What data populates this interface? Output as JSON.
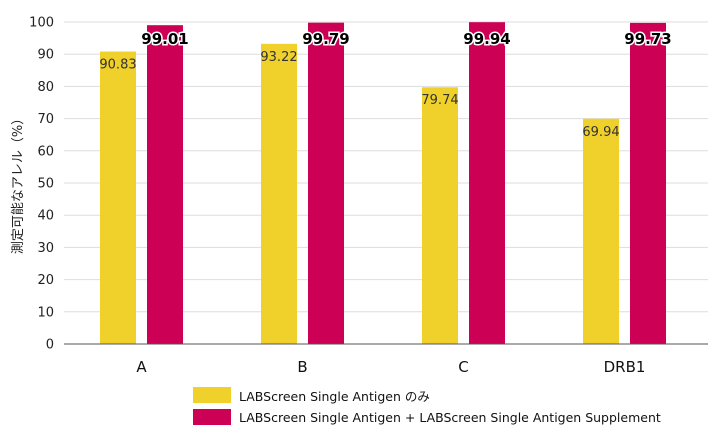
{
  "chart_data": {
    "type": "bar",
    "ylabel": "測定可能なアレル（%）",
    "ylim": [
      0,
      100
    ],
    "yticks": [
      0,
      10,
      20,
      30,
      40,
      50,
      60,
      70,
      80,
      90,
      100
    ],
    "categories": [
      "A",
      "B",
      "C",
      "DRB1"
    ],
    "series": [
      {
        "name": "LABScreen Single Antigen のみ",
        "values": [
          90.83,
          93.22,
          79.74,
          69.94
        ],
        "labels": [
          "90.83",
          "93.22",
          "79.74",
          "69.94"
        ],
        "color": "#f0d12c"
      },
      {
        "name": "LABScreen Single Antigen + LABScreen Single Antigen Supplement",
        "values": [
          99.01,
          99.79,
          99.94,
          99.73
        ],
        "labels": [
          "99.01",
          "99.79",
          "99.94",
          "99.73"
        ],
        "color": "#cc0055"
      }
    ],
    "grid": true,
    "legend_position": "bottom"
  }
}
